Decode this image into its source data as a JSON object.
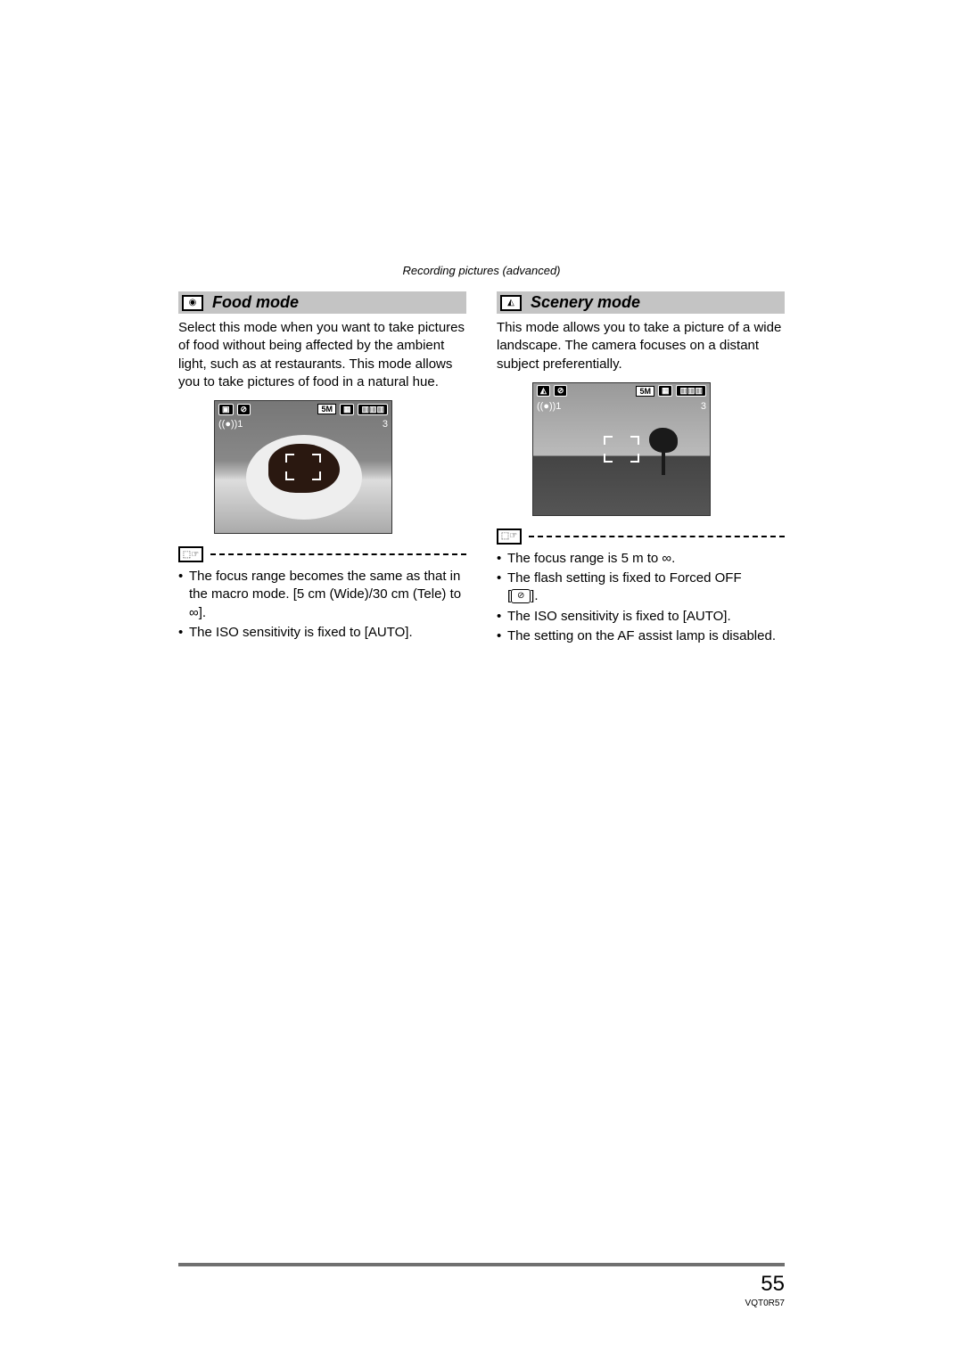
{
  "header": {
    "section": "Recording pictures (advanced)"
  },
  "food": {
    "icon_glyph": "◉",
    "title": "Food mode",
    "intro": "Select this mode when you want to take pictures of food without being affected by the ambient light, such as at restaurants. This mode allows you to take pictures of food in a natural hue.",
    "lcd": {
      "top_left_1": "▣",
      "top_left_2": "⊘",
      "top_right_size": "5M",
      "top_right_qual": "▦",
      "top_right_batt": "▥▥▥",
      "second_left": "((●))1",
      "second_right": "3"
    },
    "note_glyph": "⬚☞",
    "bullets": [
      "The focus range becomes the same as that in the macro mode. [5 cm (Wide)/30 cm (Tele) to ∞].",
      "The ISO sensitivity is fixed to [AUTO]."
    ]
  },
  "scenery": {
    "icon_glyph": "◭",
    "title": "Scenery mode",
    "intro": "This mode allows you to take a picture of a wide landscape. The camera focuses on a distant subject preferentially.",
    "lcd": {
      "top_left_1": "◭",
      "top_left_2": "⊘",
      "top_right_size": "5M",
      "top_right_qual": "▦",
      "top_right_batt": "▥▥▥",
      "second_left": "((●))1",
      "second_right": "3"
    },
    "note_glyph": "⬚☞",
    "flash_icon": "⊘",
    "bullets": [
      "The focus range is 5 m to ∞.",
      "The flash setting is fixed to Forced OFF",
      "The ISO sensitivity is fixed to [AUTO].",
      "The setting on the AF assist lamp is disabled."
    ],
    "flash_suffix_open": "[",
    "flash_suffix_close": "]."
  },
  "footer": {
    "page": "55",
    "doc_id": "VQT0R57"
  }
}
